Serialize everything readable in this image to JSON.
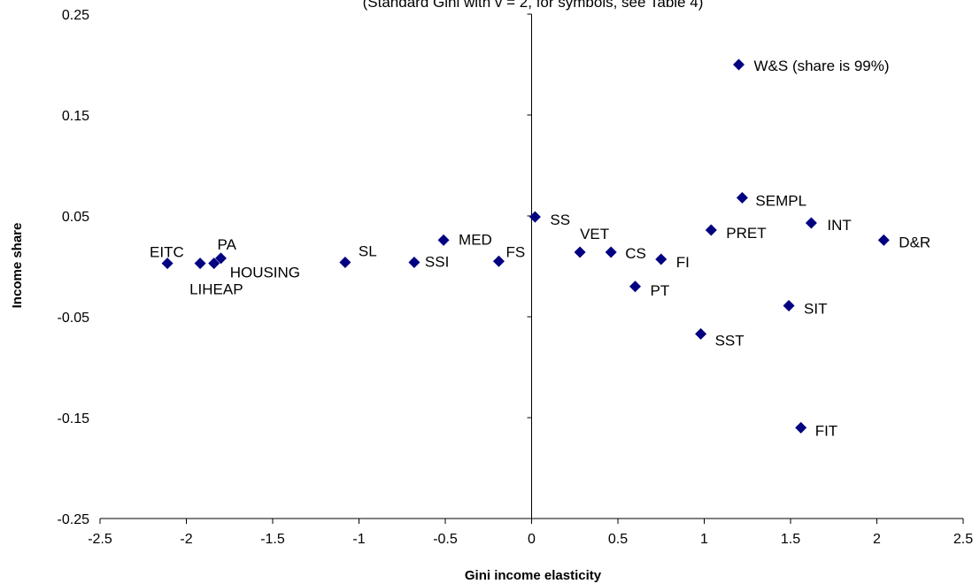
{
  "chart_data": {
    "type": "scatter",
    "subtitle": "(Standard Gini with v = 2, for symbols, see Table 4)",
    "xlabel": "Gini income elasticity",
    "ylabel": "Income share",
    "xlim": [
      -2.5,
      2.5
    ],
    "ylim": [
      -0.25,
      0.25
    ],
    "x_ticks": [
      "-2.5",
      "-2",
      "-1.5",
      "-1",
      "-0.5",
      "0",
      "0.5",
      "1",
      "1.5",
      "2",
      "2.5"
    ],
    "y_ticks": [
      "0.25",
      "0.15",
      "0.05",
      "-0.05",
      "-0.15",
      "-0.25"
    ],
    "grid": false,
    "marker_color": "#000080",
    "points": [
      {
        "label": "W&S (share is 99%)",
        "x": 1.2,
        "y": 0.2
      },
      {
        "label": "SEMPL",
        "x": 1.22,
        "y": 0.068
      },
      {
        "label": "INT",
        "x": 1.62,
        "y": 0.043
      },
      {
        "label": "PRET",
        "x": 1.04,
        "y": 0.036
      },
      {
        "label": "D&R",
        "x": 2.04,
        "y": 0.026
      },
      {
        "label": "SS",
        "x": 0.02,
        "y": 0.049
      },
      {
        "label": "VET",
        "x": 0.28,
        "y": 0.014
      },
      {
        "label": "CS",
        "x": 0.46,
        "y": 0.014
      },
      {
        "label": "FI",
        "x": 0.75,
        "y": 0.007
      },
      {
        "label": "PT",
        "x": 0.6,
        "y": -0.02
      },
      {
        "label": "SIT",
        "x": 1.49,
        "y": -0.039
      },
      {
        "label": "SST",
        "x": 0.98,
        "y": -0.067
      },
      {
        "label": "FIT",
        "x": 1.56,
        "y": -0.16
      },
      {
        "label": "MED",
        "x": -0.51,
        "y": 0.026
      },
      {
        "label": "FS",
        "x": -0.19,
        "y": 0.005
      },
      {
        "label": "SSI",
        "x": -0.68,
        "y": 0.004
      },
      {
        "label": "SL",
        "x": -1.08,
        "y": 0.004
      },
      {
        "label": "EITC",
        "x": -2.11,
        "y": 0.003
      },
      {
        "label": "LIHEAP",
        "x": -1.92,
        "y": 0.003
      },
      {
        "label": "HOUSING",
        "x": -1.84,
        "y": 0.003
      },
      {
        "label": "PA",
        "x": -1.8,
        "y": 0.008
      }
    ]
  }
}
